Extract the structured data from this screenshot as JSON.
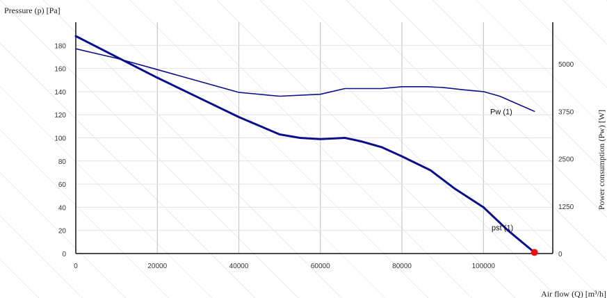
{
  "chart_data": {
    "type": "line",
    "xlabel": "Air flow (Q) [m³/h]",
    "ylabel": "Pressure (p) [Pa]",
    "ylabel_right": "Power consumption (Pw) [W]",
    "xlim": [
      0,
      117000
    ],
    "ylim": [
      0,
      200
    ],
    "ylim_right": [
      0,
      6100
    ],
    "x_ticks": [
      0,
      20000,
      40000,
      60000,
      80000,
      100000
    ],
    "y_ticks": [
      0,
      20,
      40,
      60,
      80,
      100,
      120,
      140,
      160,
      180
    ],
    "y2_ticks": [
      0,
      1250,
      2500,
      3750,
      5000
    ],
    "grid": true,
    "series": [
      {
        "name": "pst (1)",
        "axis": "left",
        "color": "#0b0f8a",
        "x": [
          0,
          10000,
          20000,
          30000,
          40000,
          50000,
          55000,
          60000,
          66000,
          70000,
          75000,
          80000,
          87000,
          93000,
          100000,
          106000,
          112500
        ],
        "y": [
          188,
          170,
          152,
          135,
          118,
          103,
          100,
          99,
          100,
          97,
          92,
          84,
          72,
          56,
          40,
          20,
          1
        ]
      },
      {
        "name": "Pw (1)",
        "axis": "right",
        "color": "#0b0f8a",
        "x": [
          0,
          10000,
          20000,
          30000,
          40000,
          50000,
          60000,
          66000,
          75000,
          80000,
          86000,
          90000,
          95000,
          100000,
          104000,
          112500
        ],
        "y": [
          5400,
          5150,
          4850,
          4550,
          4250,
          4150,
          4200,
          4350,
          4350,
          4400,
          4400,
          4380,
          4320,
          4270,
          4150,
          3750
        ]
      }
    ],
    "marker": {
      "x": 112500,
      "y": 1,
      "color": "#ee1111"
    }
  }
}
